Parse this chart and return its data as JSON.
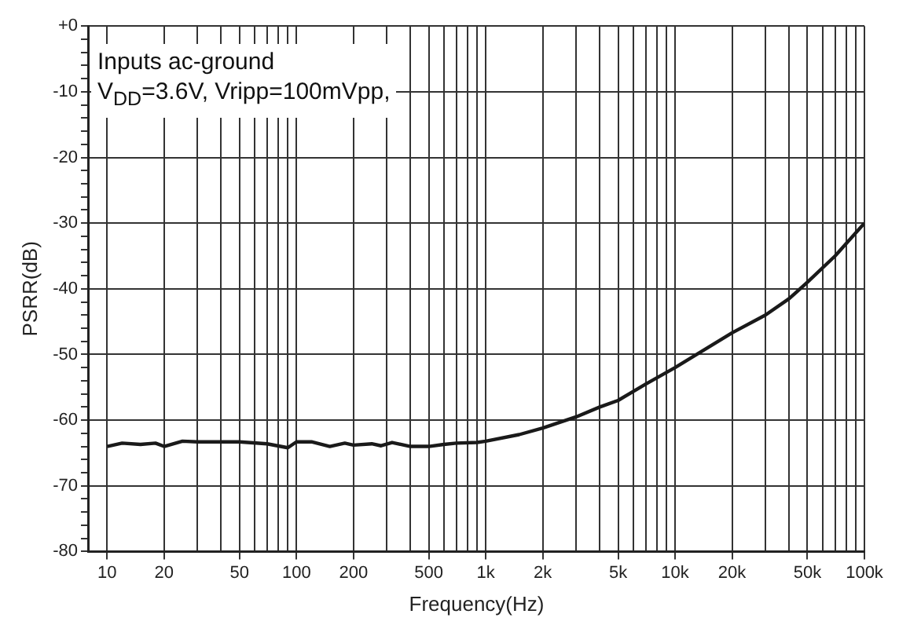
{
  "chart_data": {
    "type": "line",
    "xlabel": "Frequency(Hz)",
    "ylabel": "PSRR(dB)",
    "annotations": [
      "Inputs ac-ground",
      "V$_{DD}$=3.6V, Vripp=100mVpp,"
    ],
    "log": "x",
    "grid": true,
    "legend": false,
    "marker": "none",
    "line_style": "solid",
    "xlim": [
      8,
      100000
    ],
    "ylim": [
      -80,
      0
    ],
    "xticks": [
      10,
      20,
      {
        "value": 30,
        "label": null
      },
      {
        "value": 40,
        "label": null
      },
      50,
      {
        "value": 60,
        "label": null
      },
      {
        "value": 70,
        "label": null
      },
      {
        "value": 80,
        "label": null
      },
      {
        "value": 90,
        "label": null
      },
      100,
      200,
      {
        "value": 300,
        "label": null
      },
      {
        "value": 400,
        "label": null
      },
      500,
      {
        "value": 600,
        "label": null
      },
      {
        "value": 700,
        "label": null
      },
      {
        "value": 800,
        "label": null
      },
      {
        "value": 900,
        "label": null
      },
      {
        "value": 1000,
        "label": "1k"
      },
      {
        "value": 2000,
        "label": "2k"
      },
      {
        "value": 3000,
        "label": null
      },
      {
        "value": 4000,
        "label": null
      },
      {
        "value": 5000,
        "label": "5k"
      },
      {
        "value": 6000,
        "label": null
      },
      {
        "value": 7000,
        "label": null
      },
      {
        "value": 8000,
        "label": null
      },
      {
        "value": 9000,
        "label": null
      },
      {
        "value": 10000,
        "label": "10k"
      },
      {
        "value": 20000,
        "label": "20k"
      },
      {
        "value": 30000,
        "label": null
      },
      {
        "value": 40000,
        "label": null
      },
      {
        "value": 50000,
        "label": "50k"
      },
      {
        "value": 60000,
        "label": null
      },
      {
        "value": 70000,
        "label": null
      },
      {
        "value": 80000,
        "label": null
      },
      {
        "value": 90000,
        "label": null
      },
      {
        "value": 100000,
        "label": "100k"
      }
    ],
    "yticks": [
      {
        "value": 0,
        "label": "+0"
      },
      {
        "value": -2,
        "label": null
      },
      {
        "value": -4,
        "label": null
      },
      {
        "value": -6,
        "label": null
      },
      {
        "value": -8,
        "label": null
      },
      -10,
      {
        "value": -12,
        "label": null
      },
      {
        "value": -14,
        "label": null
      },
      {
        "value": -16,
        "label": null
      },
      {
        "value": -18,
        "label": null
      },
      -20,
      {
        "value": -22,
        "label": null
      },
      {
        "value": -24,
        "label": null
      },
      {
        "value": -26,
        "label": null
      },
      {
        "value": -28,
        "label": null
      },
      -30,
      {
        "value": -32,
        "label": null
      },
      {
        "value": -34,
        "label": null
      },
      {
        "value": -36,
        "label": null
      },
      {
        "value": -38,
        "label": null
      },
      -40,
      {
        "value": -42,
        "label": null
      },
      {
        "value": -44,
        "label": null
      },
      {
        "value": -46,
        "label": null
      },
      {
        "value": -48,
        "label": null
      },
      -50,
      {
        "value": -52,
        "label": null
      },
      {
        "value": -54,
        "label": null
      },
      {
        "value": -56,
        "label": null
      },
      {
        "value": -58,
        "label": null
      },
      -60,
      {
        "value": -62,
        "label": null
      },
      {
        "value": -64,
        "label": null
      },
      {
        "value": -66,
        "label": null
      },
      {
        "value": -68,
        "label": null
      },
      -70,
      {
        "value": -72,
        "label": null
      },
      {
        "value": -74,
        "label": null
      },
      {
        "value": -76,
        "label": null
      },
      {
        "value": -78,
        "label": null
      },
      -80
    ],
    "x": [
      10,
      12,
      15,
      18,
      20,
      25,
      30,
      50,
      70,
      90,
      100,
      120,
      150,
      180,
      200,
      250,
      280,
      320,
      400,
      500,
      600,
      700,
      900,
      1000,
      1500,
      2000,
      3000,
      4000,
      5000,
      7000,
      10000,
      20000,
      30000,
      40000,
      50000,
      70000,
      100000
    ],
    "series": [
      {
        "color": "#1a1a1a",
        "values": [
          -64,
          -63.5,
          -63.7,
          -63.5,
          -64,
          -63.2,
          -63.3,
          -63.3,
          -63.6,
          -64.2,
          -63.3,
          -63.3,
          -64,
          -63.5,
          -63.8,
          -63.6,
          -63.9,
          -63.4,
          -64,
          -64,
          -63.7,
          -63.5,
          -63.4,
          -63.2,
          -62.2,
          -61.2,
          -59.5,
          -58,
          -57,
          -54.5,
          -52,
          -46.7,
          -44,
          -41.5,
          -39,
          -35,
          -30
        ]
      }
    ]
  }
}
